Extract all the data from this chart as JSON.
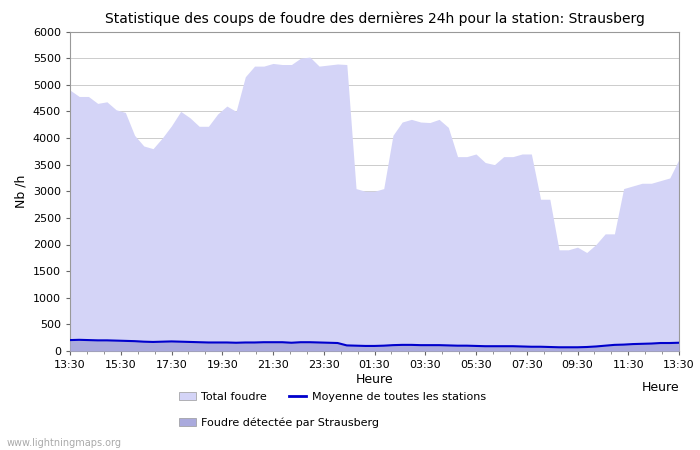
{
  "title": "Statistique des coups de foudre des dernières 24h pour la station: Strausberg",
  "xlabel": "Heure",
  "ylabel": "Nb /h",
  "ylim": [
    0,
    6000
  ],
  "yticks": [
    0,
    500,
    1000,
    1500,
    2000,
    2500,
    3000,
    3500,
    4000,
    4500,
    5000,
    5500,
    6000
  ],
  "xtick_labels": [
    "13:30",
    "15:30",
    "17:30",
    "19:30",
    "21:30",
    "23:30",
    "01:30",
    "03:30",
    "05:30",
    "07:30",
    "09:30",
    "11:30",
    "13:30"
  ],
  "watermark": "www.lightningmaps.org",
  "fill_color_total": "#d4d4f7",
  "fill_color_strausberg": "#aaaadd",
  "line_color_moyenne": "#0000cc",
  "bg_color": "#ffffff",
  "grid_color": "#cccccc",
  "title_fontsize": 10,
  "total_foudre": [
    4900,
    4780,
    4780,
    4650,
    4680,
    4530,
    4480,
    4050,
    3850,
    3800,
    4000,
    4230,
    4500,
    4380,
    4220,
    4220,
    4450,
    4600,
    4500,
    5150,
    5350,
    5350,
    5400,
    5380,
    5380,
    5500,
    5520,
    5350,
    5370,
    5390,
    5380,
    3050,
    3000,
    3000,
    3050,
    4050,
    4300,
    4350,
    4300,
    4290,
    4350,
    4200,
    3650,
    3650,
    3700,
    3540,
    3500,
    3650,
    3650,
    3700,
    3700,
    2850,
    2850,
    1900,
    1900,
    1950,
    1850,
    2000,
    2200,
    2200,
    3050,
    3100,
    3150,
    3150,
    3200,
    3250,
    3600
  ],
  "moyenne": [
    205,
    210,
    205,
    200,
    200,
    195,
    190,
    185,
    175,
    170,
    175,
    180,
    175,
    170,
    165,
    160,
    160,
    160,
    155,
    160,
    160,
    165,
    165,
    165,
    155,
    165,
    165,
    160,
    155,
    150,
    105,
    100,
    95,
    95,
    100,
    110,
    115,
    115,
    110,
    110,
    110,
    105,
    100,
    100,
    95,
    90,
    90,
    90,
    90,
    85,
    80,
    80,
    75,
    70,
    70,
    70,
    75,
    85,
    100,
    115,
    120,
    130,
    135,
    140,
    150,
    150,
    155
  ],
  "strausberg": [
    205,
    210,
    205,
    200,
    200,
    195,
    190,
    185,
    175,
    170,
    175,
    180,
    175,
    170,
    165,
    160,
    160,
    160,
    155,
    160,
    160,
    165,
    165,
    165,
    155,
    165,
    165,
    160,
    155,
    150,
    105,
    100,
    95,
    95,
    100,
    110,
    115,
    115,
    110,
    110,
    110,
    105,
    100,
    100,
    95,
    90,
    90,
    90,
    90,
    85,
    80,
    80,
    75,
    70,
    70,
    70,
    75,
    85,
    100,
    115,
    120,
    130,
    135,
    140,
    150,
    150,
    155
  ],
  "n_points": 67
}
